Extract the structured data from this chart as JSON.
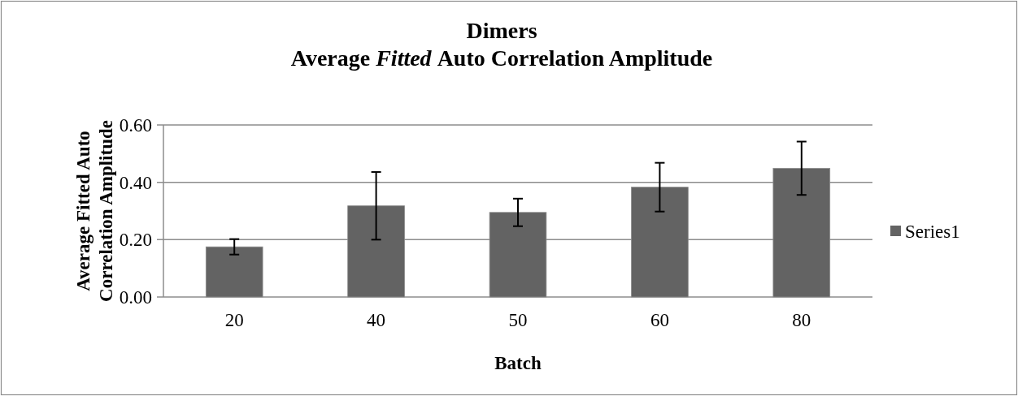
{
  "chart_data": {
    "type": "bar",
    "title": "Dimers\nAverage Fitted Auto Correlation Amplitude",
    "xlabel": "Batch",
    "ylabel": "Average Fitted Auto\nCorrelation Amplitude",
    "categories": [
      "20",
      "40",
      "50",
      "60",
      "80"
    ],
    "series": [
      {
        "name": "Series1",
        "color": "#636363",
        "values": [
          0.175,
          0.318,
          0.295,
          0.383,
          0.449
        ],
        "errors": [
          0.027,
          0.118,
          0.048,
          0.085,
          0.093
        ]
      }
    ],
    "ylim": [
      0,
      0.6
    ],
    "yticks": [
      {
        "value": 0,
        "label": "0.00"
      },
      {
        "value": 0.2,
        "label": "0.20"
      },
      {
        "value": 0.4,
        "label": "0.40"
      },
      {
        "value": 0.6,
        "label": "0.60"
      }
    ],
    "grid": "y",
    "legend": "right"
  }
}
